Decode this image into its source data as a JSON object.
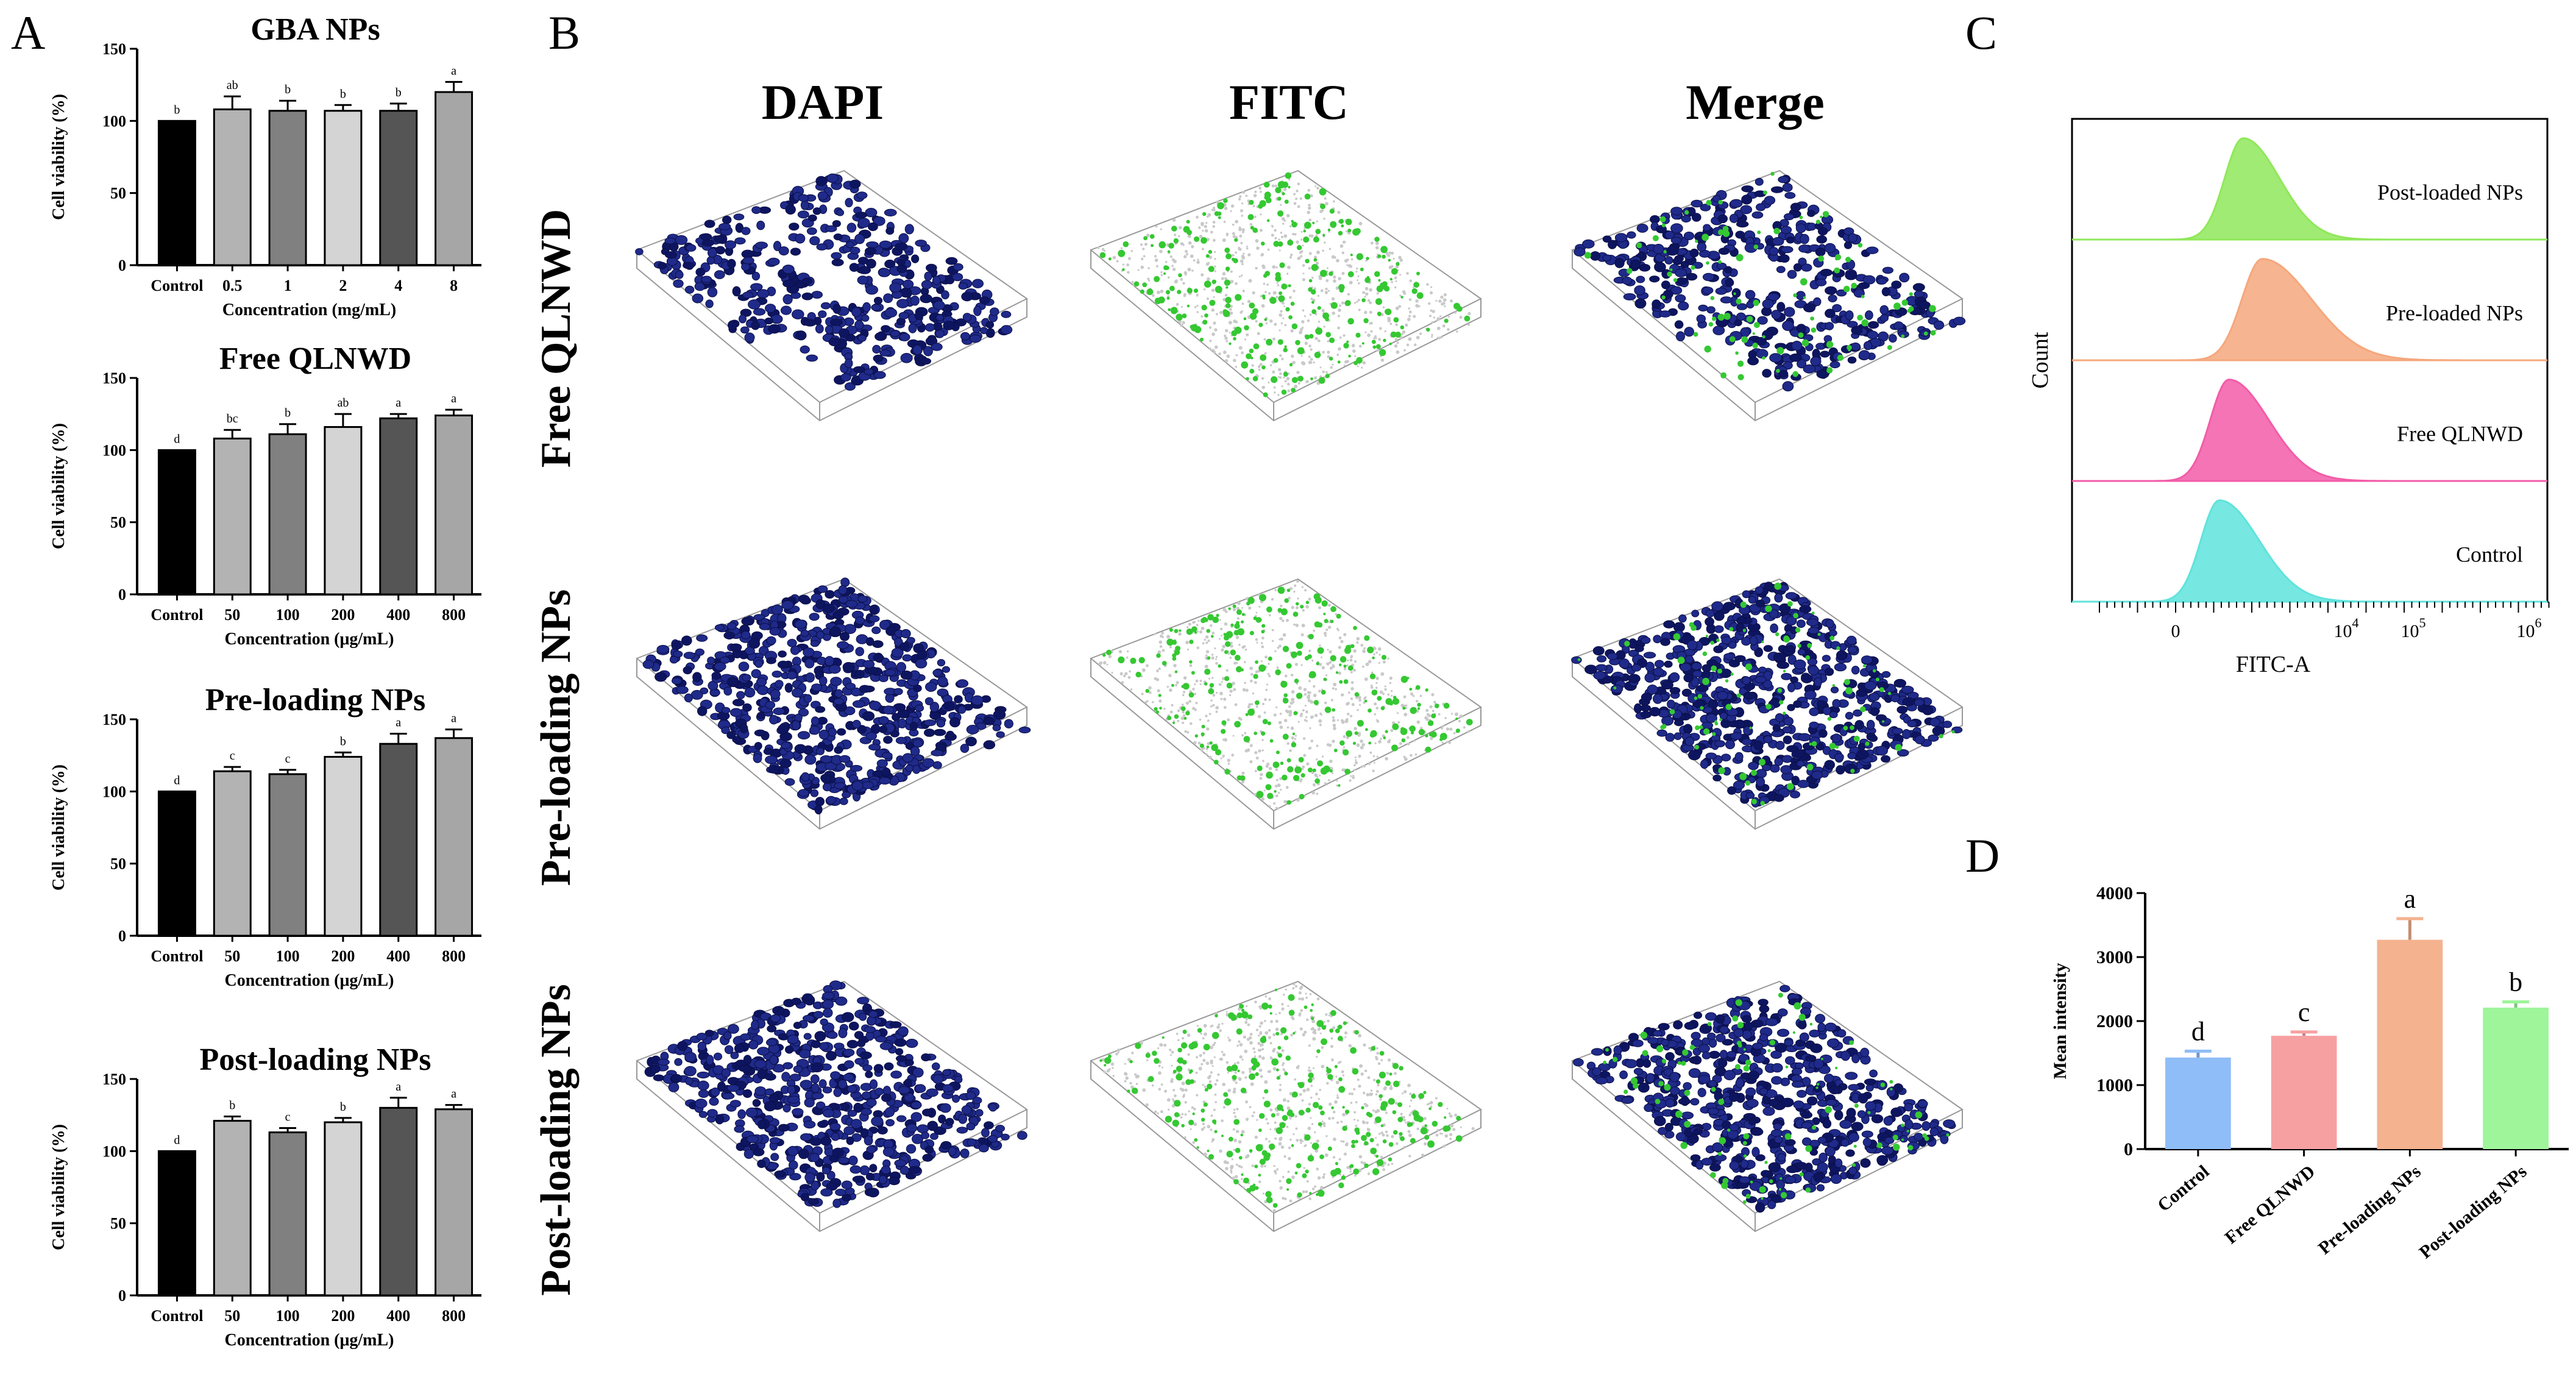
{
  "panel_letters": {
    "a": "A",
    "b": "B",
    "c": "C",
    "d": "D"
  },
  "microscopy": {
    "columns": [
      "DAPI",
      "FITC",
      "Merge"
    ],
    "rows": [
      "Free QLNWD",
      "Pre-loading NPs",
      "Post-loading NPs"
    ]
  },
  "colors": {
    "control_bar": "#000000",
    "light_gray_bar": "#b3b3b3",
    "mid_gray_bar": "#808080",
    "pale_gray_bar": "#d4d4d4",
    "dark_gray_bar": "#555555",
    "dapi_blue": "#1f2a8a",
    "fitc_green": "#35c832"
  },
  "chart_data": [
    {
      "type": "bar",
      "title": "GBA NPs",
      "xlabel": "Concentration (mg/mL)",
      "ylabel": "Cell viability (%)",
      "ylim": [
        0,
        150
      ],
      "yticks": [
        "0",
        "50",
        "100",
        "150"
      ],
      "categories": [
        "Control",
        "0.5",
        "1",
        "2",
        "4",
        "8"
      ],
      "values": [
        100,
        108,
        107,
        107,
        107,
        120
      ],
      "errors": [
        0,
        9,
        7,
        4,
        5,
        7
      ],
      "labels": [
        "b",
        "ab",
        "b",
        "b",
        "b",
        "a"
      ],
      "bar_colors": [
        "#000000",
        "#b3b3b3",
        "#808080",
        "#d4d4d4",
        "#555555",
        "#a6a6a6"
      ]
    },
    {
      "type": "bar",
      "title": "Free QLNWD",
      "xlabel": "Concentration (μg/mL)",
      "ylabel": "Cell viability (%)",
      "ylim": [
        0,
        150
      ],
      "yticks": [
        "0",
        "50",
        "100",
        "150"
      ],
      "categories": [
        "Control",
        "50",
        "100",
        "200",
        "400",
        "800"
      ],
      "values": [
        100,
        108,
        111,
        116,
        122,
        124
      ],
      "errors": [
        0,
        6,
        7,
        9,
        3,
        4
      ],
      "labels": [
        "d",
        "bc",
        "b",
        "ab",
        "a",
        "a"
      ],
      "bar_colors": [
        "#000000",
        "#b3b3b3",
        "#808080",
        "#d4d4d4",
        "#555555",
        "#a6a6a6"
      ]
    },
    {
      "type": "bar",
      "title": "Pre-loading NPs",
      "xlabel": "Concentration (μg/mL)",
      "ylabel": "Cell viability (%)",
      "ylim": [
        0,
        150
      ],
      "yticks": [
        "0",
        "50",
        "100",
        "150"
      ],
      "categories": [
        "Control",
        "50",
        "100",
        "200",
        "400",
        "800"
      ],
      "values": [
        100,
        114,
        112,
        124,
        133,
        137
      ],
      "errors": [
        0,
        3,
        3,
        3,
        7,
        6
      ],
      "labels": [
        "d",
        "c",
        "c",
        "b",
        "a",
        "a"
      ],
      "bar_colors": [
        "#000000",
        "#b3b3b3",
        "#808080",
        "#d4d4d4",
        "#555555",
        "#a6a6a6"
      ]
    },
    {
      "type": "bar",
      "title": "Post-loading NPs",
      "xlabel": "Concentration (μg/mL)",
      "ylabel": "Cell viability (%)",
      "ylim": [
        0,
        150
      ],
      "yticks": [
        "0",
        "50",
        "100",
        "150"
      ],
      "categories": [
        "Control",
        "50",
        "100",
        "200",
        "400",
        "800"
      ],
      "values": [
        100,
        121,
        113,
        120,
        130,
        129
      ],
      "errors": [
        0,
        3,
        3,
        3,
        7,
        3
      ],
      "labels": [
        "d",
        "b",
        "c",
        "b",
        "a",
        "a"
      ],
      "bar_colors": [
        "#000000",
        "#b3b3b3",
        "#808080",
        "#d4d4d4",
        "#555555",
        "#a6a6a6"
      ]
    },
    {
      "type": "area",
      "xlabel": "FITC-A",
      "ylabel": "Count",
      "xticks": [
        "0",
        "10^4",
        "10^5",
        "10^6"
      ],
      "series": [
        {
          "name": "Post-loaded NPs",
          "color": "#8fe85a",
          "peak": 0.36,
          "width": 0.055,
          "skew": 0.02
        },
        {
          "name": "Pre-loaded NPs",
          "color": "#f5a77c",
          "peak": 0.4,
          "width": 0.06,
          "skew": 0.05
        },
        {
          "name": "Free QLNWD",
          "color": "#f25ca8",
          "peak": 0.33,
          "width": 0.055,
          "skew": 0.03
        },
        {
          "name": "Control",
          "color": "#5fe3dc",
          "peak": 0.31,
          "width": 0.055,
          "skew": 0.03
        }
      ]
    },
    {
      "type": "bar",
      "ylabel": "Mean intensity",
      "ylim": [
        0,
        4000
      ],
      "yticks": [
        "0",
        "1000",
        "2000",
        "3000",
        "4000"
      ],
      "categories": [
        "Control",
        "Free QLNWD",
        "Pre-loading NPs",
        "Post-loading NPs"
      ],
      "values": [
        1430,
        1770,
        3270,
        2210
      ],
      "errors": [
        100,
        60,
        330,
        90
      ],
      "labels": [
        "d",
        "c",
        "a",
        "b"
      ],
      "bar_colors": [
        "#8fbdf7",
        "#f7a0a2",
        "#f4b28f",
        "#9ef59a"
      ]
    }
  ]
}
